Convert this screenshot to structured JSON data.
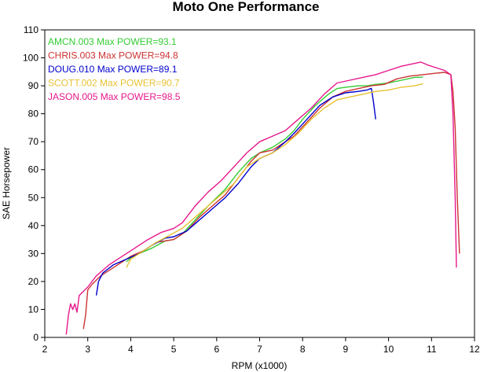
{
  "chart_data": {
    "type": "line",
    "title": "Moto One Performance",
    "xlabel": "RPM (x1000)",
    "ylabel": "SAE Horsepower",
    "xlim": [
      2,
      12
    ],
    "ylim": [
      0,
      110
    ],
    "xticks": [
      "2",
      "3",
      "4",
      "5",
      "6",
      "7",
      "8",
      "9",
      "10",
      "11",
      "12"
    ],
    "yticks": [
      "0",
      "10",
      "20",
      "30",
      "40",
      "50",
      "60",
      "70",
      "80",
      "90",
      "100",
      "110"
    ],
    "grid": false,
    "legend_position": "top-left",
    "series": [
      {
        "name": "AMCN.003  Max POWER=93.1",
        "color": "#33cc33",
        "points": [
          [
            3.9,
            27
          ],
          [
            4.0,
            28.5
          ],
          [
            4.2,
            30
          ],
          [
            4.5,
            32
          ],
          [
            4.8,
            34.5
          ],
          [
            5.0,
            35
          ],
          [
            5.2,
            37
          ],
          [
            5.5,
            42
          ],
          [
            5.8,
            47
          ],
          [
            6.0,
            50
          ],
          [
            6.2,
            53
          ],
          [
            6.5,
            59
          ],
          [
            6.8,
            64
          ],
          [
            7.0,
            66
          ],
          [
            7.3,
            68
          ],
          [
            7.6,
            71
          ],
          [
            7.8,
            74
          ],
          [
            8.0,
            78
          ],
          [
            8.3,
            83
          ],
          [
            8.6,
            87
          ],
          [
            8.8,
            89
          ],
          [
            9.0,
            89.5
          ],
          [
            9.3,
            90
          ],
          [
            9.5,
            90
          ],
          [
            9.7,
            90.5
          ],
          [
            10.0,
            91
          ],
          [
            10.3,
            92
          ],
          [
            10.6,
            93
          ],
          [
            10.8,
            93.1
          ]
        ]
      },
      {
        "name": "CHRIS.003  Max POWER=94.8",
        "color": "#cc3333",
        "points": [
          [
            2.9,
            3
          ],
          [
            2.95,
            8
          ],
          [
            3.0,
            17
          ],
          [
            3.1,
            19
          ],
          [
            3.3,
            22
          ],
          [
            3.5,
            24
          ],
          [
            3.8,
            27
          ],
          [
            4.0,
            29
          ],
          [
            4.3,
            31
          ],
          [
            4.6,
            34
          ],
          [
            5.0,
            35
          ],
          [
            5.3,
            38
          ],
          [
            5.6,
            43
          ],
          [
            5.9,
            47
          ],
          [
            6.2,
            51
          ],
          [
            6.5,
            57
          ],
          [
            6.8,
            63
          ],
          [
            7.0,
            66
          ],
          [
            7.3,
            67
          ],
          [
            7.6,
            70
          ],
          [
            7.8,
            72
          ],
          [
            8.1,
            77
          ],
          [
            8.4,
            82
          ],
          [
            8.7,
            86
          ],
          [
            9.0,
            88
          ],
          [
            9.3,
            89
          ],
          [
            9.6,
            90
          ],
          [
            9.9,
            90.5
          ],
          [
            10.2,
            92.5
          ],
          [
            10.5,
            93.5
          ],
          [
            10.8,
            94
          ],
          [
            11.1,
            94.5
          ],
          [
            11.3,
            94.8
          ],
          [
            11.45,
            94
          ],
          [
            11.5,
            88
          ],
          [
            11.55,
            75
          ],
          [
            11.6,
            50
          ],
          [
            11.65,
            30
          ]
        ]
      },
      {
        "name": "DOUG.010  Max POWER=89.1",
        "color": "#0000cc",
        "points": [
          [
            3.2,
            15
          ],
          [
            3.25,
            20
          ],
          [
            3.35,
            23
          ],
          [
            3.6,
            26
          ],
          [
            3.9,
            28
          ],
          [
            4.2,
            30
          ],
          [
            4.5,
            33
          ],
          [
            4.8,
            35.5
          ],
          [
            5.0,
            36
          ],
          [
            5.3,
            38
          ],
          [
            5.6,
            42
          ],
          [
            5.9,
            46
          ],
          [
            6.2,
            50
          ],
          [
            6.5,
            55
          ],
          [
            6.8,
            61
          ],
          [
            7.0,
            64
          ],
          [
            7.3,
            66
          ],
          [
            7.6,
            70
          ],
          [
            7.8,
            73
          ],
          [
            8.1,
            78
          ],
          [
            8.4,
            83
          ],
          [
            8.7,
            86
          ],
          [
            9.0,
            87.5
          ],
          [
            9.3,
            88
          ],
          [
            9.5,
            88.5
          ],
          [
            9.6,
            89.1
          ],
          [
            9.65,
            84
          ],
          [
            9.7,
            78
          ]
        ]
      },
      {
        "name": "SCOTT.002  Max POWER=90.7",
        "color": "#e6c233",
        "points": [
          [
            3.9,
            25
          ],
          [
            4.0,
            28
          ],
          [
            4.3,
            31
          ],
          [
            4.6,
            34
          ],
          [
            4.9,
            36.5
          ],
          [
            5.2,
            39
          ],
          [
            5.5,
            43
          ],
          [
            5.8,
            47
          ],
          [
            6.1,
            51
          ],
          [
            6.4,
            55
          ],
          [
            6.7,
            61
          ],
          [
            7.0,
            64
          ],
          [
            7.3,
            66
          ],
          [
            7.6,
            69
          ],
          [
            7.9,
            73
          ],
          [
            8.2,
            78
          ],
          [
            8.5,
            82
          ],
          [
            8.8,
            85
          ],
          [
            9.1,
            86
          ],
          [
            9.4,
            87
          ],
          [
            9.7,
            88
          ],
          [
            10.0,
            88.5
          ],
          [
            10.3,
            89.5
          ],
          [
            10.6,
            90
          ],
          [
            10.8,
            90.7
          ]
        ]
      },
      {
        "name": "JASON.005  Max POWER=98.5",
        "color": "#e6188c",
        "points": [
          [
            2.5,
            1
          ],
          [
            2.55,
            8
          ],
          [
            2.6,
            12
          ],
          [
            2.65,
            10
          ],
          [
            2.7,
            12
          ],
          [
            2.75,
            9
          ],
          [
            2.8,
            15
          ],
          [
            3.0,
            18
          ],
          [
            3.2,
            22
          ],
          [
            3.5,
            26
          ],
          [
            3.8,
            29
          ],
          [
            4.1,
            32
          ],
          [
            4.4,
            35
          ],
          [
            4.7,
            37.5
          ],
          [
            5.0,
            39
          ],
          [
            5.2,
            41
          ],
          [
            5.5,
            47
          ],
          [
            5.8,
            52
          ],
          [
            6.1,
            56
          ],
          [
            6.4,
            61
          ],
          [
            6.7,
            66
          ],
          [
            7.0,
            70
          ],
          [
            7.3,
            72
          ],
          [
            7.6,
            74
          ],
          [
            7.9,
            78
          ],
          [
            8.2,
            82
          ],
          [
            8.5,
            87
          ],
          [
            8.8,
            91
          ],
          [
            9.1,
            92
          ],
          [
            9.4,
            93
          ],
          [
            9.7,
            94
          ],
          [
            10.0,
            95.5
          ],
          [
            10.3,
            97
          ],
          [
            10.6,
            98
          ],
          [
            10.75,
            98.5
          ],
          [
            10.9,
            97.5
          ],
          [
            11.1,
            96.5
          ],
          [
            11.3,
            95.5
          ],
          [
            11.45,
            94
          ],
          [
            11.5,
            80
          ],
          [
            11.55,
            50
          ],
          [
            11.58,
            25
          ]
        ]
      }
    ]
  }
}
